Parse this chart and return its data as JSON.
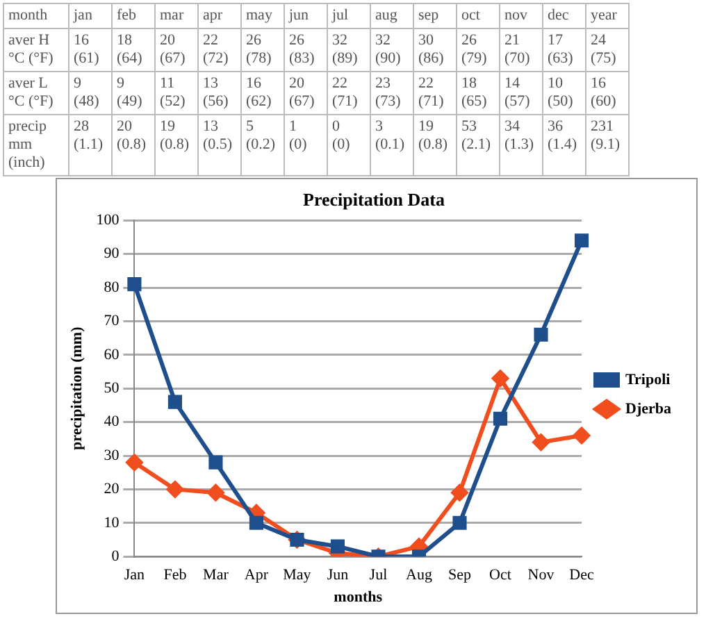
{
  "chart_data": [
    {
      "type": "other",
      "xlabel": "month",
      "categories": [
        "jan",
        "feb",
        "mar",
        "apr",
        "may",
        "jun",
        "jul",
        "aug",
        "sep",
        "oct",
        "nov",
        "dec",
        "year"
      ],
      "y_categories": [
        "aver H °C (°F)",
        "aver L °C (°F)",
        "precip mm (inch)"
      ],
      "cell_labels": [
        [
          "16 (61)",
          "18 (64)",
          "20 (67)",
          "22 (72)",
          "26 (78)",
          "26 (83)",
          "32 (89)",
          "32 (90)",
          "30 (86)",
          "26 (79)",
          "21 (70)",
          "17 (63)",
          "24 (75)"
        ],
        [
          "9 (48)",
          "9 (49)",
          "11 (52)",
          "13 (56)",
          "16 (62)",
          "20 (67)",
          "22 (71)",
          "23 (73)",
          "22 (71)",
          "18 (65)",
          "14 (57)",
          "10 (50)",
          "16 (60)"
        ],
        [
          "28 (1.1)",
          "20 (0.8)",
          "19 (0.8)",
          "13 (0.5)",
          "5 (0.2)",
          "1 (0)",
          "0 (0)",
          "3 (0.1)",
          "19 (0.8)",
          "53 (2.1)",
          "34 (1.3)",
          "36 (1.4)",
          "231 (9.1)"
        ]
      ]
    },
    {
      "type": "line",
      "title": "Precipitation Data",
      "xlabel": "months",
      "ylabel": "precipitation (mm)",
      "categories": [
        "Jan",
        "Feb",
        "Mar",
        "Apr",
        "May",
        "Jun",
        "Jul",
        "Aug",
        "Sep",
        "Oct",
        "Nov",
        "Dec"
      ],
      "ylim": [
        0,
        100
      ],
      "yticks": [
        0,
        10,
        20,
        30,
        40,
        50,
        60,
        70,
        80,
        90,
        100
      ],
      "grid": "y",
      "legend": "right",
      "series": [
        {
          "name": "Tripoli",
          "color": "#1f4e8c",
          "marker": "square",
          "values": [
            81,
            46,
            28,
            10,
            5,
            3,
            0,
            0,
            10,
            41,
            66,
            94
          ]
        },
        {
          "name": "Djerba",
          "color": "#f04e1e",
          "marker": "diamond",
          "values": [
            28,
            20,
            19,
            13,
            5,
            1,
            0,
            3,
            19,
            53,
            34,
            36
          ]
        }
      ]
    }
  ]
}
